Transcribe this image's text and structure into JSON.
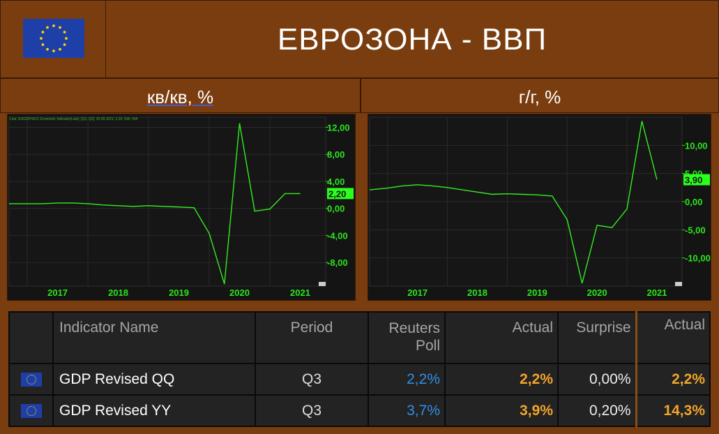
{
  "header": {
    "title": "ЕВРОЗОНА - ВВП",
    "flag": "eu-flag",
    "flag_color": "#1f3fa8",
    "star_color": "#ffd400"
  },
  "subheaders": {
    "left_main": "кв/кв,",
    "left_unit": " %",
    "right": "г/г, %"
  },
  "left_chart": {
    "info_text": "Line; EUGDP=ECI; Economic Indicator(Last); [Q1; Q2]; 30.09.2021; 2,20; N/A; N/A"
  },
  "chart_data": [
    {
      "type": "line",
      "title": "",
      "x_ticks": [
        "2017",
        "2018",
        "2019",
        "2020",
        "2021"
      ],
      "y_ticks": [
        "12,00",
        "8,00",
        "4,00",
        "0,00",
        "-4,00",
        "-8,00"
      ],
      "ylim": [
        -11.5,
        13.5
      ],
      "last_value_label": "2,20",
      "line_color": "#33ee22",
      "x": [
        2016.7,
        2017.0,
        2017.25,
        2017.5,
        2017.75,
        2018.0,
        2018.25,
        2018.5,
        2018.75,
        2019.0,
        2019.25,
        2019.5,
        2019.75,
        2020.0,
        2020.25,
        2020.5,
        2020.75,
        2021.0,
        2021.25,
        2021.5
      ],
      "y": [
        0.7,
        0.7,
        0.7,
        0.8,
        0.8,
        0.7,
        0.5,
        0.4,
        0.3,
        0.4,
        0.3,
        0.2,
        0.1,
        -3.7,
        -11.2,
        12.6,
        -0.4,
        -0.1,
        2.2,
        2.2
      ],
      "grid": true,
      "legend": "none"
    },
    {
      "type": "line",
      "title": "",
      "x_ticks": [
        "2017",
        "2018",
        "2019",
        "2020",
        "2021"
      ],
      "y_ticks": [
        "10,00",
        "5,00",
        "0,00",
        "-5,00",
        "-10,00"
      ],
      "ylim": [
        -15,
        15
      ],
      "last_value_label": "3,90",
      "line_color": "#33ee22",
      "x": [
        2016.7,
        2017.0,
        2017.25,
        2017.5,
        2017.75,
        2018.0,
        2018.25,
        2018.5,
        2018.75,
        2019.0,
        2019.25,
        2019.5,
        2019.75,
        2020.0,
        2020.25,
        2020.5,
        2020.75,
        2021.0,
        2021.25,
        2021.5
      ],
      "y": [
        2.1,
        2.4,
        2.8,
        3.0,
        2.8,
        2.5,
        2.1,
        1.7,
        1.3,
        1.4,
        1.3,
        1.2,
        1.0,
        -3.2,
        -14.5,
        -4.2,
        -4.6,
        -1.3,
        14.3,
        3.9
      ],
      "grid": true,
      "legend": "none"
    }
  ],
  "table": {
    "headers": {
      "name": "Indicator Name",
      "period": "Period",
      "poll": "Reuters Poll",
      "actual": "Actual",
      "surprise": "Surprise",
      "actual2": "Actual"
    },
    "rows": [
      {
        "name": "GDP Revised QQ",
        "period": "Q3",
        "poll": "2,2%",
        "actual": "2,2%",
        "surprise": "0,00%",
        "actual2": "2,2%"
      },
      {
        "name": "GDP Revised YY",
        "period": "Q3",
        "poll": "3,7%",
        "actual": "3,9%",
        "surprise": "0,20%",
        "actual2": "14,3%"
      }
    ],
    "colors": {
      "poll": "#2f8fe8",
      "actual": "#f2a52a"
    }
  }
}
